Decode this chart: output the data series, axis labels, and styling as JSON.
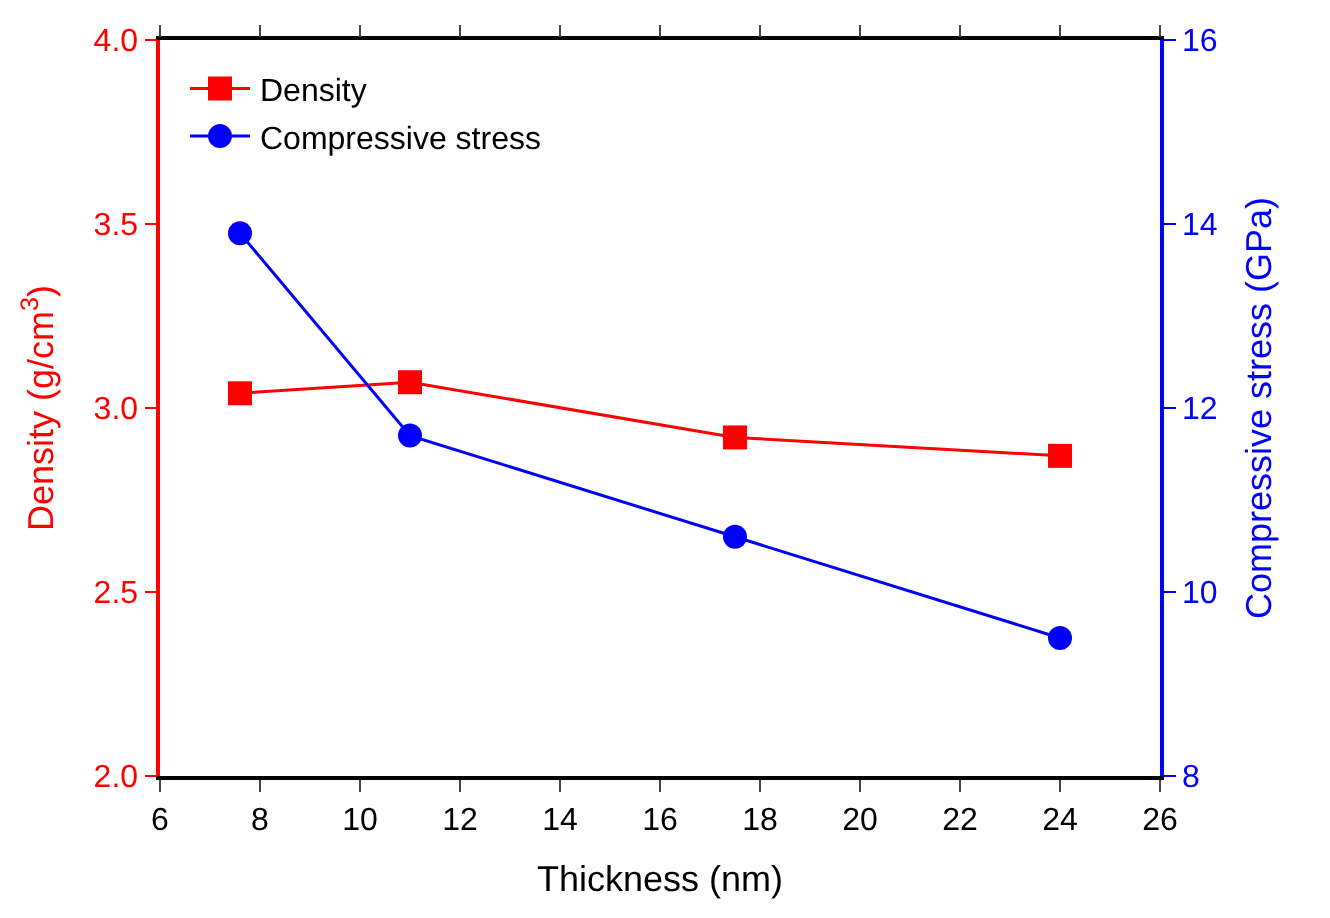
{
  "chart_data": {
    "type": "line",
    "xlabel": "Thickness (nm)",
    "ylabel": "Density (g/cm$^{3}$)",
    "y2label": "Compressive stress (GPa)",
    "x": [
      7.6,
      11.0,
      17.5,
      24.0
    ],
    "series": [
      {
        "name": "Density",
        "color": "#ff0000",
        "values": [
          3.04,
          3.07,
          2.92,
          2.87
        ],
        "marker": "square"
      },
      {
        "name": "Compressive stress",
        "color": "#0000ff",
        "values": [
          13.9,
          11.7,
          10.6,
          9.5
        ],
        "marker": "circle",
        "axis": "y2"
      }
    ],
    "xlim": [
      6,
      26
    ],
    "xticks": [
      6,
      8,
      10,
      12,
      14,
      16,
      18,
      20,
      22,
      24,
      26
    ],
    "ylim": [
      2.0,
      4.0
    ],
    "yticks": [
      {
        "value": 2.0,
        "label": "2.0"
      },
      {
        "value": 2.5,
        "label": "2.5"
      },
      {
        "value": 3.0,
        "label": "3.0"
      },
      {
        "value": 3.5,
        "label": "3.5"
      },
      {
        "value": 4.0,
        "label": "4.0"
      }
    ],
    "y2lim": [
      8,
      16
    ],
    "y2ticks": [
      8,
      10,
      12,
      14,
      16
    ],
    "legend": "top left",
    "line_style": "solid"
  }
}
